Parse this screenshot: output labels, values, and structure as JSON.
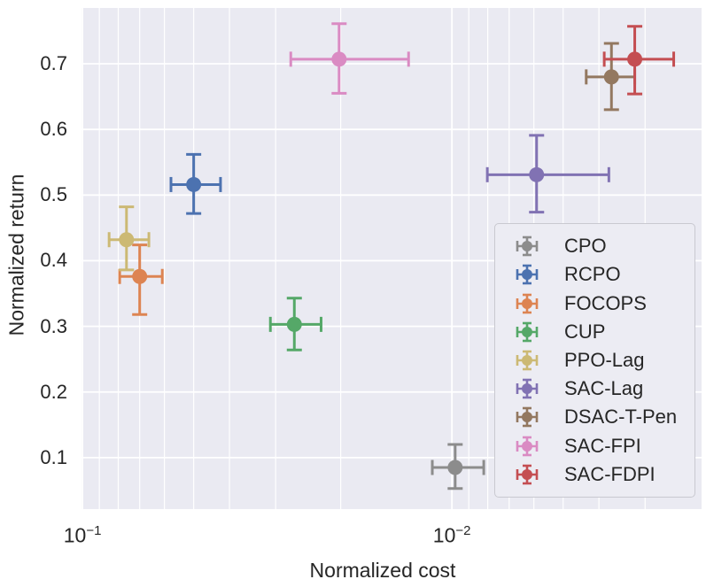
{
  "colors": {
    "figure_bg": "#ffffff",
    "plot_bg": "#eaeaf2",
    "grid": "#ffffff",
    "text": "#262626",
    "legend_bg": "#ececf3",
    "legend_border": "#c9c9d0"
  },
  "chart_data": {
    "type": "scatter",
    "title": "",
    "xlabel": "Normalized cost",
    "ylabel": "Normalized return",
    "x_scale": "log-reversed",
    "grid": true,
    "legend_position": "lower-right-inside",
    "xlim": [
      0.1006,
      0.00211
    ],
    "ylim": [
      0.0216,
      0.785
    ],
    "x_ticks": [
      {
        "base": "10",
        "exp": "−1",
        "value": 0.1
      },
      {
        "base": "10",
        "exp": "−2",
        "value": 0.01
      }
    ],
    "y_ticks": [
      0.1,
      0.2,
      0.3,
      0.4,
      0.5,
      0.6,
      0.7
    ],
    "x_gridlines_major": [
      0.1,
      0.01
    ],
    "x_gridlines_minor": [
      0.09,
      0.08,
      0.07,
      0.06,
      0.05,
      0.04,
      0.03,
      0.02,
      0.009,
      0.008,
      0.007,
      0.006,
      0.005,
      0.004,
      0.003
    ],
    "series": [
      {
        "name": "CPO",
        "color": "#8c8c8c",
        "cost": 0.0098,
        "return": 0.085,
        "cost_whiskers": [
          0.0113,
          0.0082
        ],
        "return_whiskers": [
          0.053,
          0.12
        ]
      },
      {
        "name": "RCPO",
        "color": "#4c72b0",
        "cost": 0.05,
        "return": 0.516,
        "cost_whiskers": [
          0.0576,
          0.0423
        ],
        "return_whiskers": [
          0.472,
          0.562
        ]
      },
      {
        "name": "FOCOPS",
        "color": "#dd8452",
        "cost": 0.07,
        "return": 0.376,
        "cost_whiskers": [
          0.0793,
          0.0608
        ],
        "return_whiskers": [
          0.318,
          0.424
        ]
      },
      {
        "name": "CUP",
        "color": "#55a868",
        "cost": 0.0267,
        "return": 0.303,
        "cost_whiskers": [
          0.031,
          0.0226
        ],
        "return_whiskers": [
          0.264,
          0.343
        ]
      },
      {
        "name": "PPO-Lag",
        "color": "#ccb974",
        "cost": 0.076,
        "return": 0.432,
        "cost_whiskers": [
          0.0847,
          0.0661
        ],
        "return_whiskers": [
          0.386,
          0.482
        ]
      },
      {
        "name": "SAC-Lag",
        "color": "#8172b3",
        "cost": 0.0059,
        "return": 0.531,
        "cost_whiskers": [
          0.00802,
          0.00376
        ],
        "return_whiskers": [
          0.474,
          0.591
        ]
      },
      {
        "name": "DSAC-T-Pen",
        "color": "#937860",
        "cost": 0.0037,
        "return": 0.68,
        "cost_whiskers": [
          0.00433,
          0.0032
        ],
        "return_whiskers": [
          0.63,
          0.731
        ]
      },
      {
        "name": "SAC-FPI",
        "color": "#da8bc3",
        "cost": 0.0202,
        "return": 0.707,
        "cost_whiskers": [
          0.0273,
          0.0131
        ],
        "return_whiskers": [
          0.655,
          0.761
        ]
      },
      {
        "name": "SAC-FDPI",
        "color": "#c44e52",
        "cost": 0.0032,
        "return": 0.707,
        "cost_whiskers": [
          0.00387,
          0.00251
        ],
        "return_whiskers": [
          0.654,
          0.757
        ]
      }
    ]
  }
}
